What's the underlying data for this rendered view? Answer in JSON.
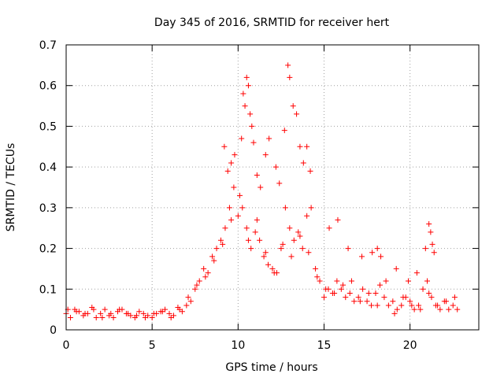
{
  "chart_data": {
    "type": "scatter",
    "title": "Day 345 of 2016, SRMTID for receiver hert",
    "xlabel": "GPS time / hours",
    "ylabel": "SRMTID / TECUs",
    "xlim": [
      0,
      24.0
    ],
    "ylim": [
      0,
      0.7
    ],
    "grid": true,
    "legend": "none",
    "x_ticks": [
      0,
      5,
      10,
      15,
      20
    ],
    "x_tick_labels": [
      "0",
      "5",
      "10",
      "15",
      "20"
    ],
    "y_ticks": [
      0,
      0.1,
      0.2,
      0.3,
      0.4,
      0.5,
      0.6,
      0.7
    ],
    "y_tick_labels": [
      "0",
      "0.1",
      "0.2",
      "0.3",
      "0.4",
      "0.5",
      "0.6",
      "0.7"
    ],
    "marker": "+",
    "color": "#ff0000",
    "series": [
      {
        "name": "SRMTID",
        "x": [
          0.0,
          0.25,
          0.5,
          0.75,
          1.0,
          1.25,
          1.5,
          1.75,
          2.0,
          2.25,
          2.5,
          2.75,
          3.0,
          3.25,
          3.5,
          3.75,
          4.0,
          4.25,
          4.5,
          4.75,
          5.0,
          5.25,
          5.5,
          5.75,
          6.0,
          6.25,
          6.5,
          6.75,
          7.0,
          7.25,
          7.5,
          7.75,
          8.0,
          8.25,
          8.5,
          8.75,
          9.0,
          9.25,
          9.5,
          9.75,
          10.0,
          10.25,
          10.5,
          10.75,
          11.0,
          11.25,
          11.5,
          11.75,
          12.0,
          12.25,
          12.5,
          12.75,
          13.0,
          13.25,
          13.5,
          13.75,
          14.0,
          14.25,
          14.5,
          14.75,
          15.0,
          15.25,
          15.5,
          15.75,
          16.0,
          16.25,
          16.5,
          16.75,
          17.0,
          17.25,
          17.5,
          17.75,
          18.0,
          18.25,
          18.5,
          18.75,
          19.0,
          19.25,
          19.5,
          19.75,
          20.0,
          20.25,
          20.5,
          20.75,
          21.0,
          21.25,
          21.5,
          21.75,
          22.0,
          22.25,
          22.5,
          22.75,
          0.1,
          0.6,
          1.1,
          1.6,
          2.1,
          2.6,
          3.1,
          3.6,
          4.1,
          4.6,
          5.1,
          5.6,
          6.1,
          6.6,
          7.1,
          7.6,
          8.1,
          8.6,
          9.1,
          9.6,
          10.1,
          10.6,
          11.1,
          11.6,
          12.1,
          12.6,
          13.1,
          13.6,
          14.1,
          14.6,
          15.1,
          15.6,
          16.1,
          16.6,
          17.1,
          17.6,
          18.1,
          18.6,
          19.1,
          19.6,
          20.1,
          20.6,
          21.1,
          21.6,
          22.1,
          22.6,
          9.2,
          9.4,
          9.6,
          9.8,
          10.2,
          10.3,
          10.4,
          10.5,
          10.6,
          10.7,
          10.8,
          10.9,
          11.1,
          11.3,
          11.6,
          11.8,
          12.2,
          12.4,
          12.7,
          12.9,
          13.0,
          13.2,
          13.4,
          13.6,
          13.8,
          14.0,
          14.2,
          15.3,
          15.8,
          16.4,
          17.2,
          17.8,
          18.1,
          18.3,
          19.2,
          19.9,
          20.4,
          20.9,
          21.1,
          21.2,
          21.3,
          21.4
        ],
        "y": [
          0.04,
          0.03,
          0.05,
          0.045,
          0.035,
          0.04,
          0.055,
          0.03,
          0.04,
          0.05,
          0.035,
          0.03,
          0.045,
          0.05,
          0.04,
          0.035,
          0.03,
          0.045,
          0.04,
          0.035,
          0.03,
          0.04,
          0.045,
          0.05,
          0.04,
          0.035,
          0.055,
          0.045,
          0.06,
          0.07,
          0.1,
          0.12,
          0.15,
          0.14,
          0.18,
          0.2,
          0.22,
          0.25,
          0.3,
          0.35,
          0.28,
          0.3,
          0.25,
          0.2,
          0.24,
          0.22,
          0.18,
          0.16,
          0.15,
          0.14,
          0.2,
          0.3,
          0.25,
          0.22,
          0.24,
          0.2,
          0.28,
          0.3,
          0.15,
          0.12,
          0.08,
          0.1,
          0.09,
          0.12,
          0.1,
          0.08,
          0.09,
          0.07,
          0.08,
          0.1,
          0.07,
          0.06,
          0.09,
          0.11,
          0.08,
          0.06,
          0.07,
          0.05,
          0.06,
          0.08,
          0.07,
          0.05,
          0.06,
          0.1,
          0.12,
          0.08,
          0.06,
          0.05,
          0.07,
          0.05,
          0.06,
          0.05,
          0.05,
          0.045,
          0.04,
          0.05,
          0.03,
          0.04,
          0.05,
          0.04,
          0.035,
          0.03,
          0.04,
          0.045,
          0.03,
          0.05,
          0.08,
          0.11,
          0.13,
          0.17,
          0.21,
          0.27,
          0.33,
          0.22,
          0.27,
          0.19,
          0.14,
          0.21,
          0.18,
          0.23,
          0.19,
          0.13,
          0.1,
          0.09,
          0.11,
          0.12,
          0.07,
          0.09,
          0.06,
          0.12,
          0.04,
          0.08,
          0.06,
          0.05,
          0.09,
          0.06,
          0.07,
          0.08,
          0.45,
          0.39,
          0.41,
          0.43,
          0.47,
          0.58,
          0.55,
          0.62,
          0.6,
          0.53,
          0.5,
          0.46,
          0.38,
          0.35,
          0.43,
          0.47,
          0.4,
          0.36,
          0.49,
          0.65,
          0.62,
          0.55,
          0.53,
          0.45,
          0.41,
          0.45,
          0.39,
          0.25,
          0.27,
          0.2,
          0.18,
          0.19,
          0.2,
          0.18,
          0.15,
          0.12,
          0.14,
          0.2,
          0.26,
          0.24,
          0.21,
          0.19
        ]
      }
    ]
  }
}
